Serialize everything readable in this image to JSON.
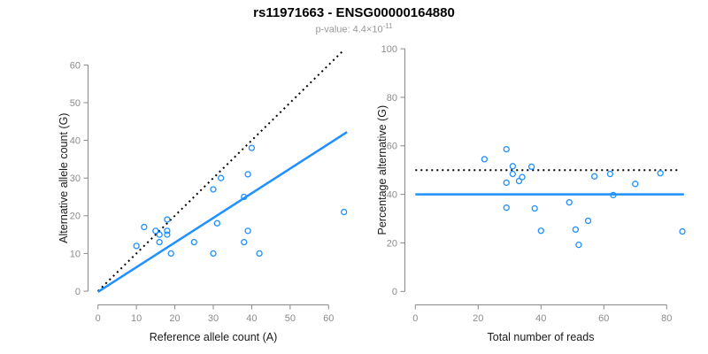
{
  "header": {
    "title": "rs11971663 - ENSG00000164880",
    "pvalue_prefix": "p-value: 4.4×10",
    "pvalue_exponent": "-11"
  },
  "colors": {
    "accent_blue": "#1E90FF",
    "axis_gray": "#888888",
    "tick_text_gray": "#8C8C8C",
    "axis_title_color": "#1A1A1A",
    "subtitle_gray": "#999999",
    "dotted_line_black": "#000000"
  },
  "chart_data": [
    {
      "type": "scatter",
      "name": "allele-counts-scatter",
      "title": "",
      "xlabel": "Reference allele count (A)",
      "ylabel": "Alternative allele count (G)",
      "xlim": [
        0,
        60
      ],
      "ylim": [
        0,
        60
      ],
      "xticks": [
        0,
        10,
        20,
        30,
        40,
        50,
        60
      ],
      "yticks": [
        0,
        10,
        20,
        30,
        40,
        50,
        60
      ],
      "grid": false,
      "legend": "none",
      "marker": "open-circle",
      "points": [
        [
          10,
          12
        ],
        [
          12,
          17
        ],
        [
          15,
          16
        ],
        [
          16,
          15
        ],
        [
          16,
          13
        ],
        [
          18,
          19
        ],
        [
          18,
          16
        ],
        [
          18,
          15
        ],
        [
          19,
          10
        ],
        [
          25,
          13
        ],
        [
          30,
          27
        ],
        [
          30,
          10
        ],
        [
          31,
          18
        ],
        [
          32,
          30
        ],
        [
          38,
          25
        ],
        [
          38,
          13
        ],
        [
          39,
          31
        ],
        [
          39,
          16
        ],
        [
          40,
          38
        ],
        [
          42,
          10
        ],
        [
          64,
          21
        ]
      ],
      "lines": [
        {
          "name": "identity-line",
          "style": "dotted",
          "color": "#000000",
          "from": [
            0,
            0
          ],
          "to": [
            63.8,
            63.8
          ]
        },
        {
          "name": "regression-line",
          "style": "solid",
          "color": "#1E90FF",
          "from": [
            0,
            -0.2
          ],
          "to": [
            64.8,
            42.2
          ]
        }
      ]
    },
    {
      "type": "scatter",
      "name": "percentage-scatter",
      "title": "",
      "xlabel": "Total number of reads",
      "ylabel": "Percentage alternative (G)",
      "xlim": [
        0,
        80
      ],
      "ylim": [
        0,
        100
      ],
      "xticks": [
        0,
        20,
        40,
        60,
        80
      ],
      "yticks": [
        0,
        20,
        40,
        60,
        80,
        100
      ],
      "grid": false,
      "legend": "none",
      "marker": "open-circle",
      "points": [
        [
          22,
          54.5
        ],
        [
          29,
          58.6
        ],
        [
          31,
          51.6
        ],
        [
          31,
          48.4
        ],
        [
          29,
          44.8
        ],
        [
          37,
          51.4
        ],
        [
          34,
          47.1
        ],
        [
          33,
          45.5
        ],
        [
          29,
          34.5
        ],
        [
          38,
          34.2
        ],
        [
          57,
          47.4
        ],
        [
          40,
          25.0
        ],
        [
          49,
          36.7
        ],
        [
          62,
          48.4
        ],
        [
          63,
          39.7
        ],
        [
          51,
          25.5
        ],
        [
          70,
          44.3
        ],
        [
          55,
          29.1
        ],
        [
          78,
          48.7
        ],
        [
          52,
          19.2
        ],
        [
          85,
          24.7
        ]
      ],
      "lines": [
        {
          "name": "expected-percentage-line",
          "style": "dotted",
          "color": "#000000",
          "from": [
            0,
            50
          ],
          "to": [
            84,
            50
          ]
        },
        {
          "name": "mean-percentage-line",
          "style": "solid",
          "color": "#1E90FF",
          "from": [
            0,
            40
          ],
          "to": [
            85.5,
            40
          ]
        }
      ]
    }
  ]
}
